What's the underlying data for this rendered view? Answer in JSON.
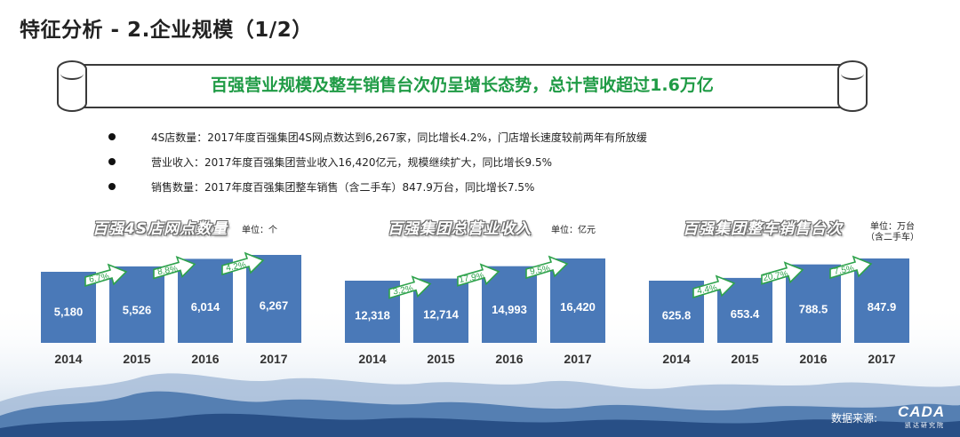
{
  "title": "特征分析 - 2.企业规模（1/2）",
  "banner": "百强营业规模及整车销售台次仍呈增长态势，总计营收超过1.6万亿",
  "bullets": [
    "4S店数量：2017年度百强集团4S网点数达到6,267家，同比增长4.2%，门店增长速度较前两年有所放缓",
    "营业收入：2017年度百强集团营业收入16,420亿元，规模继续扩大，同比增长9.5%",
    "销售数量：2017年度百强集团整车销售（含二手车）847.9万台，同比增长7.5%"
  ],
  "chart_data": [
    {
      "type": "bar",
      "title": "百强4S店网点数量",
      "unit": "单位：个",
      "categories": [
        "2014",
        "2015",
        "2016",
        "2017"
      ],
      "values": [
        5180,
        5526,
        6014,
        6267
      ],
      "value_labels": [
        "5,180",
        "5,526",
        "6,014",
        "6,267"
      ],
      "growth_labels": [
        "6.7%",
        "8.8%",
        "4.2%"
      ],
      "color": "#4a79b8"
    },
    {
      "type": "bar",
      "title": "百强集团总营业收入",
      "unit": "单位：亿元",
      "categories": [
        "2014",
        "2015",
        "2016",
        "2017"
      ],
      "values": [
        12318,
        12714,
        14993,
        16420
      ],
      "value_labels": [
        "12,318",
        "12,714",
        "14,993",
        "16,420"
      ],
      "growth_labels": [
        "3.2%",
        "17.9%",
        "9.5%"
      ],
      "color": "#4a79b8"
    },
    {
      "type": "bar",
      "title": "百强集团整车销售台次",
      "unit": "单位：万台（含二手车）",
      "unit_lines": [
        "单位：万台",
        "（含二手车）"
      ],
      "categories": [
        "2014",
        "2015",
        "2016",
        "2017"
      ],
      "values": [
        625.8,
        653.4,
        788.5,
        847.9
      ],
      "value_labels": [
        "625.8",
        "653.4",
        "788.5",
        "847.9"
      ],
      "growth_labels": [
        "4.4%",
        "20.7%",
        "7.5%"
      ],
      "color": "#4a79b8"
    }
  ],
  "footer": {
    "source_label": "数据来源:",
    "logo_text": "CADA",
    "logo_sub": "凯达研究院"
  }
}
